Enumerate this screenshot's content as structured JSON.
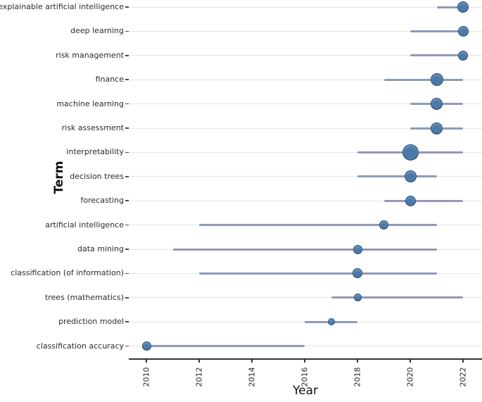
{
  "chart_data": {
    "type": "scatter",
    "title": "",
    "xlabel": "Year",
    "ylabel": "Term",
    "x_ticks": [
      2010,
      2012,
      2014,
      2016,
      2018,
      2020,
      2022
    ],
    "xlim": [
      2009.3,
      2022.7
    ],
    "grid": "horizontal-only",
    "legend_position": "none",
    "terms": [
      {
        "term": "explainable artificial intelligence",
        "range_start": 2021,
        "range_end": 2022,
        "dot_year": 2022,
        "dot_size": 16
      },
      {
        "term": "deep learning",
        "range_start": 2020,
        "range_end": 2022,
        "dot_year": 2022,
        "dot_size": 15
      },
      {
        "term": "risk management",
        "range_start": 2020,
        "range_end": 2022,
        "dot_year": 2022,
        "dot_size": 14
      },
      {
        "term": "finance",
        "range_start": 2019,
        "range_end": 2022,
        "dot_year": 2021,
        "dot_size": 18
      },
      {
        "term": "machine learning",
        "range_start": 2020,
        "range_end": 2022,
        "dot_year": 2021,
        "dot_size": 17
      },
      {
        "term": "risk assessment",
        "range_start": 2020,
        "range_end": 2022,
        "dot_year": 2021,
        "dot_size": 17
      },
      {
        "term": "interpretability",
        "range_start": 2018,
        "range_end": 2022,
        "dot_year": 2020,
        "dot_size": 23
      },
      {
        "term": "decision trees",
        "range_start": 2018,
        "range_end": 2021,
        "dot_year": 2020,
        "dot_size": 17
      },
      {
        "term": "forecasting",
        "range_start": 2019,
        "range_end": 2022,
        "dot_year": 2020,
        "dot_size": 15
      },
      {
        "term": "artificial intelligence",
        "range_start": 2012,
        "range_end": 2021,
        "dot_year": 2019,
        "dot_size": 13
      },
      {
        "term": "data mining",
        "range_start": 2011,
        "range_end": 2021,
        "dot_year": 2018,
        "dot_size": 13
      },
      {
        "term": "classification (of information)",
        "range_start": 2012,
        "range_end": 2021,
        "dot_year": 2018,
        "dot_size": 14
      },
      {
        "term": "trees (mathematics)",
        "range_start": 2017,
        "range_end": 2022,
        "dot_year": 2018,
        "dot_size": 11
      },
      {
        "term": "prediction model",
        "range_start": 2016,
        "range_end": 2018,
        "dot_year": 2017,
        "dot_size": 10
      },
      {
        "term": "classification accuracy",
        "range_start": 2010,
        "range_end": 2016,
        "dot_year": 2010,
        "dot_size": 13
      }
    ],
    "colors": {
      "range_line": "#8f9aba",
      "bubble_fill": "#4b79a9",
      "bubble_border": "#24466f",
      "gridline": "#e5e5ea",
      "axis_line": "#333333",
      "text": "#262626"
    }
  }
}
